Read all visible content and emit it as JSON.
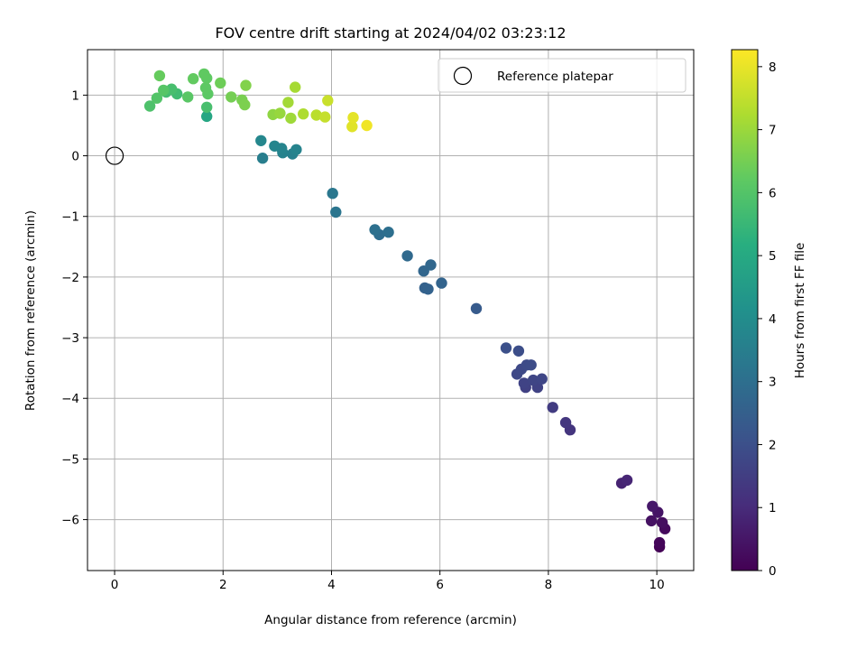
{
  "chart_data": {
    "type": "scatter",
    "title": "FOV centre drift starting at 2024/04/02 03:23:12",
    "xlabel": "Angular distance from reference (arcmin)",
    "ylabel": "Rotation from reference (arcmin)",
    "xlim": [
      -0.5,
      10.68
    ],
    "ylim": [
      -6.84,
      1.75
    ],
    "xticks": [
      0,
      2,
      4,
      6,
      8,
      10
    ],
    "xtick_labels": [
      "0",
      "2",
      "4",
      "6",
      "8",
      "10"
    ],
    "yticks": [
      1,
      0,
      -1,
      -2,
      -3,
      -4,
      -5,
      -6
    ],
    "ytick_labels": [
      "1",
      "0",
      "−1",
      "−2",
      "−3",
      "−4",
      "−5",
      "−6"
    ],
    "grid": true,
    "legend": {
      "position": "top-right",
      "entries": [
        "Reference platepar"
      ]
    },
    "colorbar": {
      "label": "Hours from first FF file",
      "range": [
        0,
        8.27
      ],
      "ticks": [
        0,
        1,
        2,
        3,
        4,
        5,
        6,
        7,
        8
      ],
      "tick_labels": [
        "0",
        "1",
        "2",
        "3",
        "4",
        "5",
        "6",
        "7",
        "8"
      ],
      "colormap": "viridis"
    },
    "reference_point": {
      "x": 0,
      "y": 0
    },
    "points": [
      {
        "x": 10.05,
        "y": -6.45,
        "h": 0.05
      },
      {
        "x": 10.05,
        "y": -6.38,
        "h": 0.12
      },
      {
        "x": 10.15,
        "y": -6.15,
        "h": 0.2
      },
      {
        "x": 10.1,
        "y": -6.05,
        "h": 0.3
      },
      {
        "x": 9.9,
        "y": -6.02,
        "h": 0.38
      },
      {
        "x": 10.02,
        "y": -5.88,
        "h": 0.45
      },
      {
        "x": 9.92,
        "y": -5.78,
        "h": 0.55
      },
      {
        "x": 9.35,
        "y": -5.4,
        "h": 0.8
      },
      {
        "x": 9.45,
        "y": -5.35,
        "h": 0.88
      },
      {
        "x": 8.4,
        "y": -4.52,
        "h": 1.25
      },
      {
        "x": 8.32,
        "y": -4.4,
        "h": 1.32
      },
      {
        "x": 8.08,
        "y": -4.15,
        "h": 1.45
      },
      {
        "x": 7.58,
        "y": -3.82,
        "h": 1.58
      },
      {
        "x": 7.8,
        "y": -3.82,
        "h": 1.62
      },
      {
        "x": 7.55,
        "y": -3.75,
        "h": 1.66
      },
      {
        "x": 7.72,
        "y": -3.7,
        "h": 1.7
      },
      {
        "x": 7.88,
        "y": -3.68,
        "h": 1.74
      },
      {
        "x": 7.42,
        "y": -3.6,
        "h": 1.78
      },
      {
        "x": 7.5,
        "y": -3.52,
        "h": 1.82
      },
      {
        "x": 7.6,
        "y": -3.45,
        "h": 1.86
      },
      {
        "x": 7.68,
        "y": -3.45,
        "h": 1.9
      },
      {
        "x": 7.45,
        "y": -3.22,
        "h": 1.96
      },
      {
        "x": 7.22,
        "y": -3.17,
        "h": 2.0
      },
      {
        "x": 6.67,
        "y": -2.52,
        "h": 2.35
      },
      {
        "x": 5.72,
        "y": -2.18,
        "h": 2.55
      },
      {
        "x": 5.78,
        "y": -2.2,
        "h": 2.6
      },
      {
        "x": 6.03,
        "y": -2.1,
        "h": 2.65
      },
      {
        "x": 5.7,
        "y": -1.9,
        "h": 2.7
      },
      {
        "x": 5.83,
        "y": -1.8,
        "h": 2.75
      },
      {
        "x": 5.4,
        "y": -1.65,
        "h": 2.82
      },
      {
        "x": 4.88,
        "y": -1.3,
        "h": 2.95
      },
      {
        "x": 5.05,
        "y": -1.26,
        "h": 3.0
      },
      {
        "x": 4.8,
        "y": -1.22,
        "h": 3.05
      },
      {
        "x": 4.08,
        "y": -0.93,
        "h": 3.2
      },
      {
        "x": 4.02,
        "y": -0.62,
        "h": 3.28
      },
      {
        "x": 2.73,
        "y": -0.04,
        "h": 3.5
      },
      {
        "x": 3.28,
        "y": 0.03,
        "h": 3.58
      },
      {
        "x": 3.1,
        "y": 0.05,
        "h": 3.62
      },
      {
        "x": 3.35,
        "y": 0.1,
        "h": 3.66
      },
      {
        "x": 3.08,
        "y": 0.12,
        "h": 3.7
      },
      {
        "x": 2.95,
        "y": 0.16,
        "h": 3.74
      },
      {
        "x": 2.7,
        "y": 0.25,
        "h": 3.8
      },
      {
        "x": 1.7,
        "y": 0.65,
        "h": 4.9
      },
      {
        "x": 1.7,
        "y": 0.8,
        "h": 5.8
      },
      {
        "x": 0.65,
        "y": 0.82,
        "h": 5.9
      },
      {
        "x": 0.78,
        "y": 0.95,
        "h": 6.0
      },
      {
        "x": 1.15,
        "y": 1.02,
        "h": 5.65
      },
      {
        "x": 0.95,
        "y": 1.05,
        "h": 5.72
      },
      {
        "x": 1.05,
        "y": 1.1,
        "h": 5.78
      },
      {
        "x": 0.9,
        "y": 1.08,
        "h": 6.05
      },
      {
        "x": 1.35,
        "y": 0.97,
        "h": 6.1
      },
      {
        "x": 1.72,
        "y": 1.02,
        "h": 6.15
      },
      {
        "x": 1.68,
        "y": 1.12,
        "h": 6.18
      },
      {
        "x": 1.7,
        "y": 1.28,
        "h": 6.2
      },
      {
        "x": 1.65,
        "y": 1.35,
        "h": 6.22
      },
      {
        "x": 1.45,
        "y": 1.27,
        "h": 6.25
      },
      {
        "x": 0.83,
        "y": 1.32,
        "h": 6.3
      },
      {
        "x": 1.95,
        "y": 1.2,
        "h": 6.4
      },
      {
        "x": 2.15,
        "y": 0.97,
        "h": 6.5
      },
      {
        "x": 2.35,
        "y": 0.92,
        "h": 6.55
      },
      {
        "x": 2.4,
        "y": 0.84,
        "h": 6.6
      },
      {
        "x": 2.42,
        "y": 1.16,
        "h": 6.68
      },
      {
        "x": 2.92,
        "y": 0.68,
        "h": 6.85
      },
      {
        "x": 3.05,
        "y": 0.7,
        "h": 6.95
      },
      {
        "x": 3.25,
        "y": 0.62,
        "h": 7.05
      },
      {
        "x": 3.2,
        "y": 0.88,
        "h": 7.1
      },
      {
        "x": 3.33,
        "y": 1.13,
        "h": 7.15
      },
      {
        "x": 3.48,
        "y": 0.69,
        "h": 7.25
      },
      {
        "x": 3.72,
        "y": 0.67,
        "h": 7.4
      },
      {
        "x": 3.88,
        "y": 0.64,
        "h": 7.55
      },
      {
        "x": 3.93,
        "y": 0.91,
        "h": 7.6
      },
      {
        "x": 4.38,
        "y": 0.48,
        "h": 7.9
      },
      {
        "x": 4.4,
        "y": 0.63,
        "h": 7.95
      },
      {
        "x": 4.65,
        "y": 0.5,
        "h": 8.1
      }
    ]
  }
}
